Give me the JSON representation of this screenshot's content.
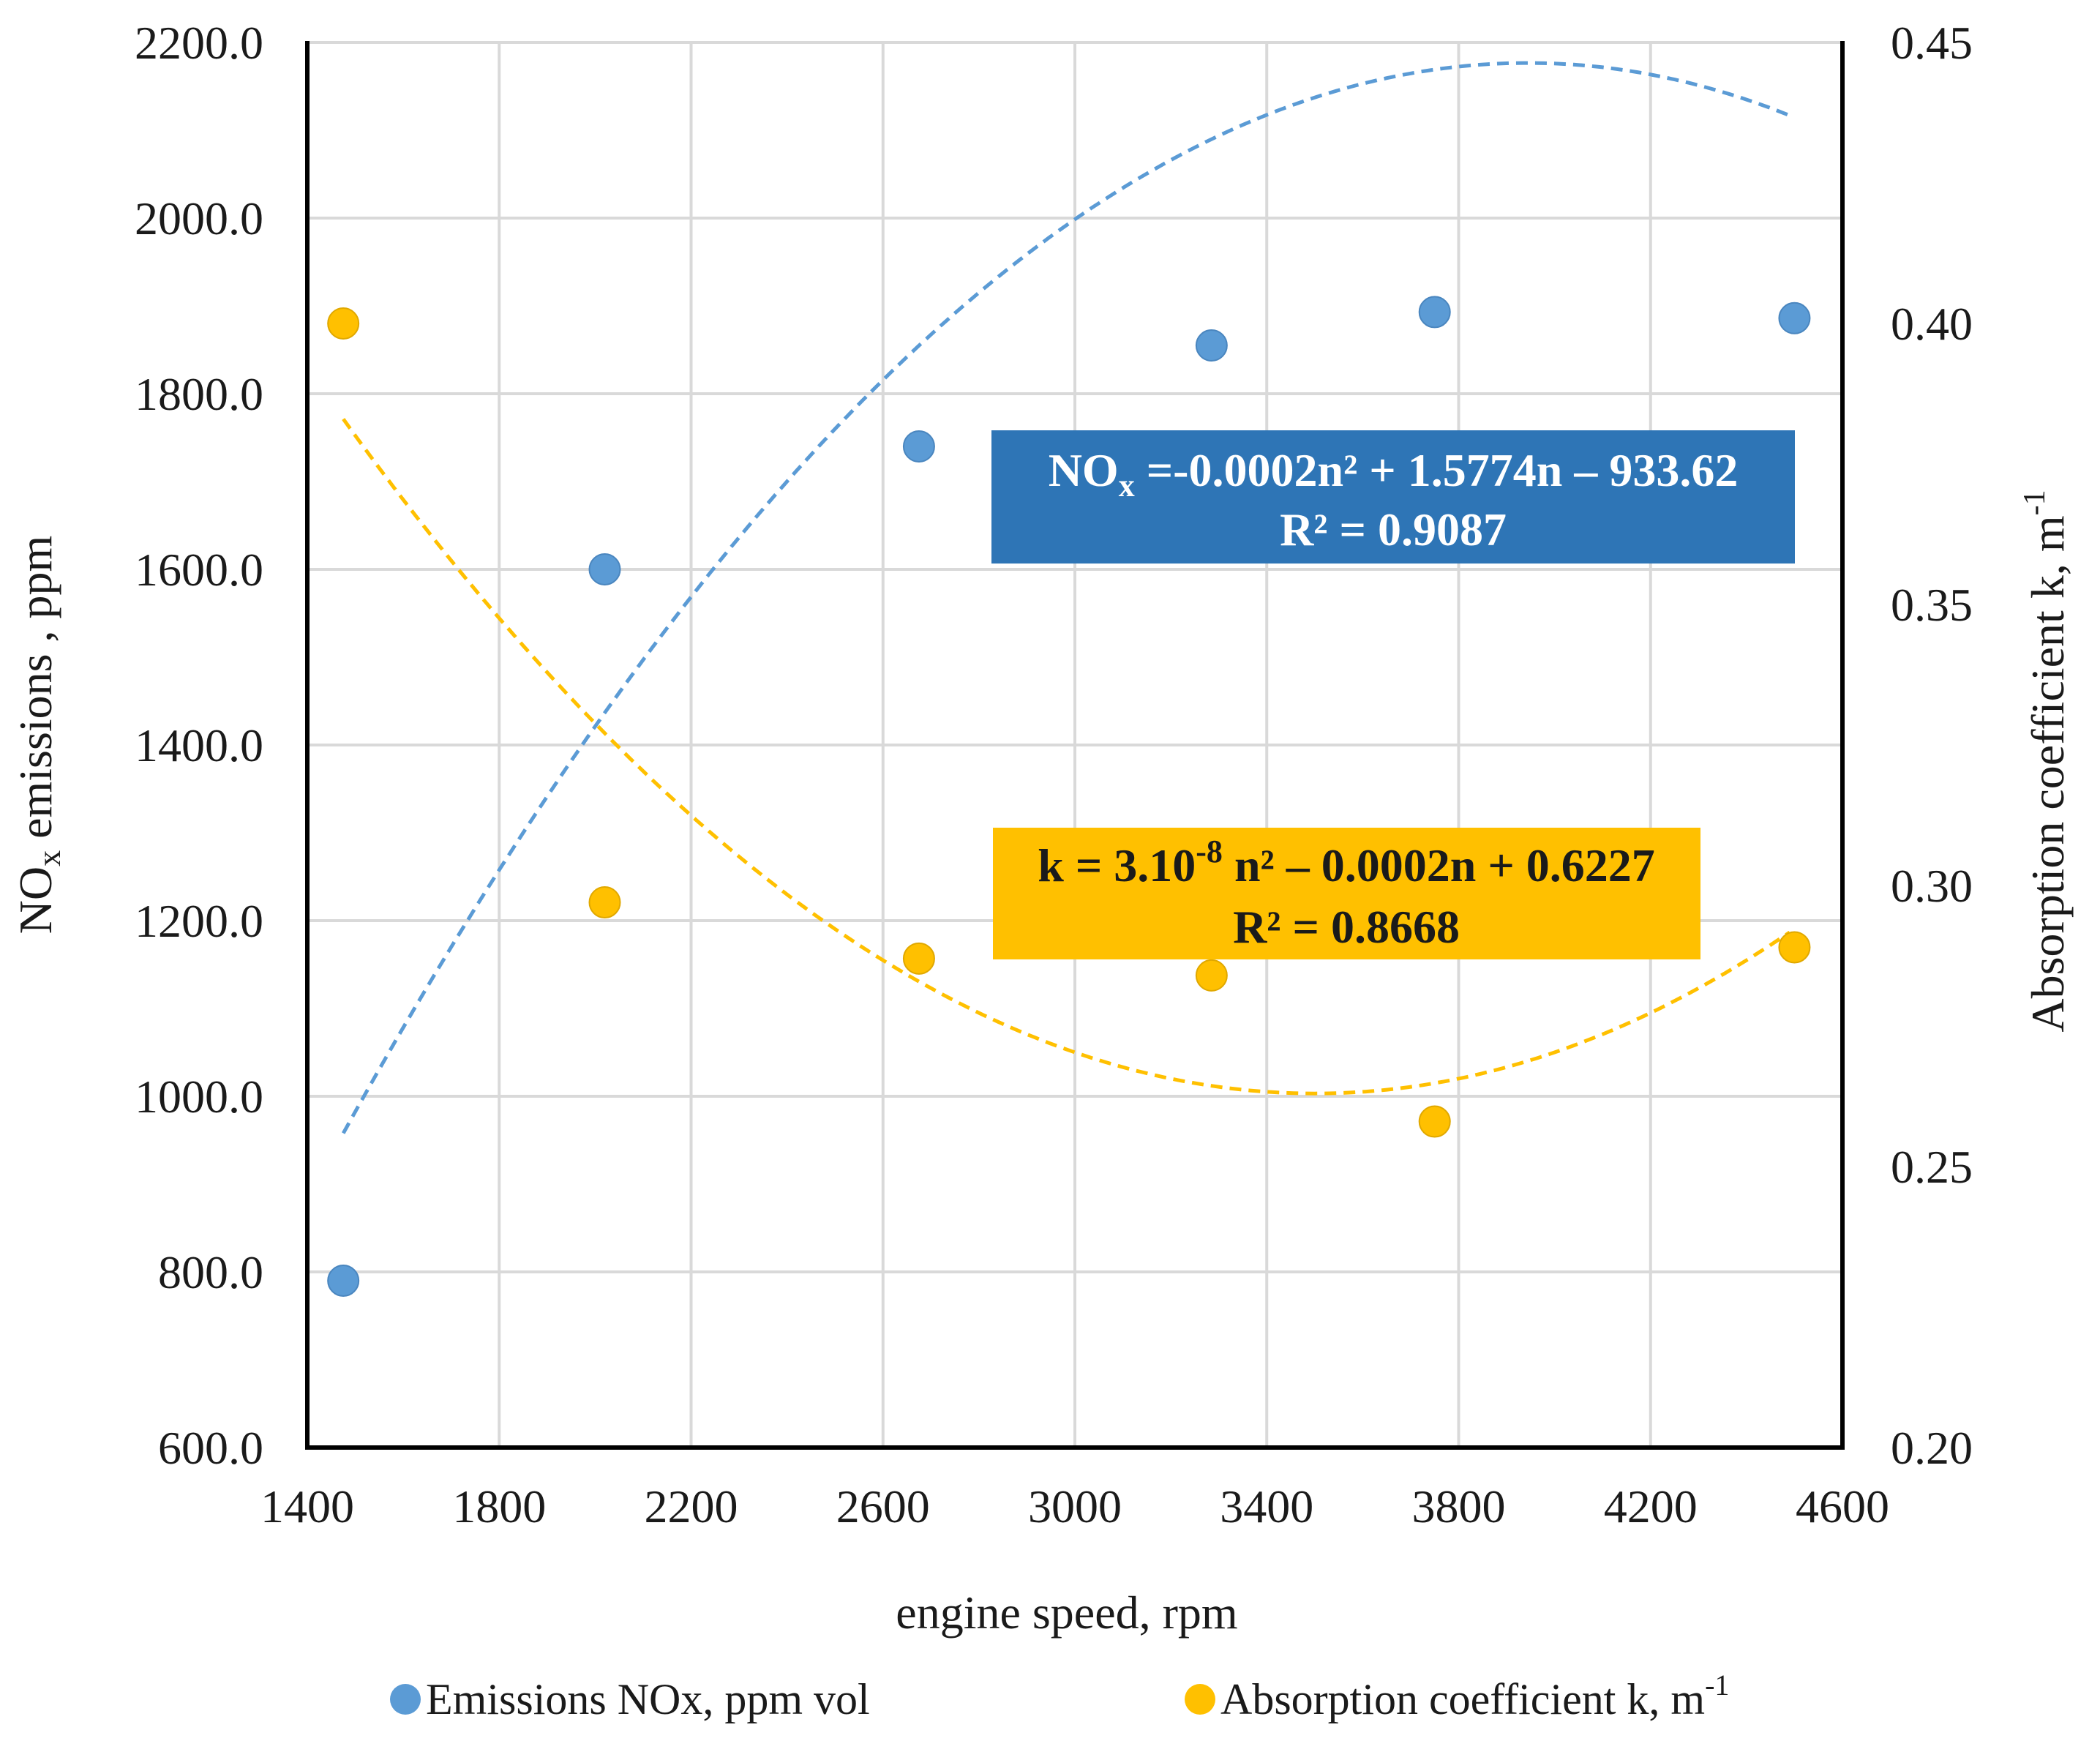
{
  "chart_data": {
    "type": "scatter",
    "title": "",
    "xlabel": "engine speed, rpm",
    "ylabel_left": {
      "main": "NO",
      "sub": "x",
      "rest": " emissions , ppm"
    },
    "ylabel_right": {
      "main": "Absorption coefficient k, m",
      "sup": "-1"
    },
    "xlim": [
      1400,
      4600
    ],
    "ylim_left": [
      600,
      2200
    ],
    "ylim_right": [
      0.2,
      0.45
    ],
    "x_ticks": [
      "1400",
      "1800",
      "2200",
      "2600",
      "3000",
      "3400",
      "3800",
      "4200",
      "4600"
    ],
    "y_left_ticks": [
      "600.0",
      "800.0",
      "1000.0",
      "1200.0",
      "1400.0",
      "1600.0",
      "1800.0",
      "2000.0",
      "2200.0"
    ],
    "y_right_ticks": [
      "0.20",
      "0.25",
      "0.30",
      "0.35",
      "0.40",
      "0.45"
    ],
    "grid": true,
    "legend_position": "bottom",
    "series": [
      {
        "name": "Emissions NOx, ppm vol",
        "axis": "left",
        "color": "#5b9bd5",
        "x": [
          1475,
          2020,
          2675,
          3285,
          3750,
          4500
        ],
        "y": [
          790,
          1600,
          1740,
          1855,
          1893,
          1886
        ],
        "trendline": {
          "type": "poly2",
          "coef": [
            -0.0002,
            1.5774,
            -933.62
          ],
          "x_range": [
            1475,
            4500
          ]
        }
      },
      {
        "name": "Absorption coefficient k, m",
        "legend_sup": "-1",
        "axis": "right",
        "color": "#ffc000",
        "x": [
          1475,
          2020,
          2675,
          3285,
          3750,
          4500
        ],
        "y": [
          0.4,
          0.297,
          0.287,
          0.284,
          0.258,
          0.289
        ],
        "trendline": {
          "type": "poly2",
          "vertex_x": 3500,
          "vertex_y": 0.263,
          "value_at_start": 0.383,
          "x_range": [
            1475,
            4500
          ]
        }
      }
    ],
    "annotations": {
      "nox_equation": {
        "parts": [
          "NO",
          "x",
          " =-0.0002n² + 1.5774n – 933.62"
        ],
        "r2": "R² = 0.9087",
        "bg_color": "#2e75b6",
        "text_color": "#ffffff"
      },
      "k_equation": {
        "parts": [
          "k = 3.10",
          "-8",
          " n² – 0.0002n + 0.6227"
        ],
        "r2": "R² = 0.8668",
        "bg_color": "#ffc000",
        "text_color": "#1a1a1a"
      }
    }
  }
}
